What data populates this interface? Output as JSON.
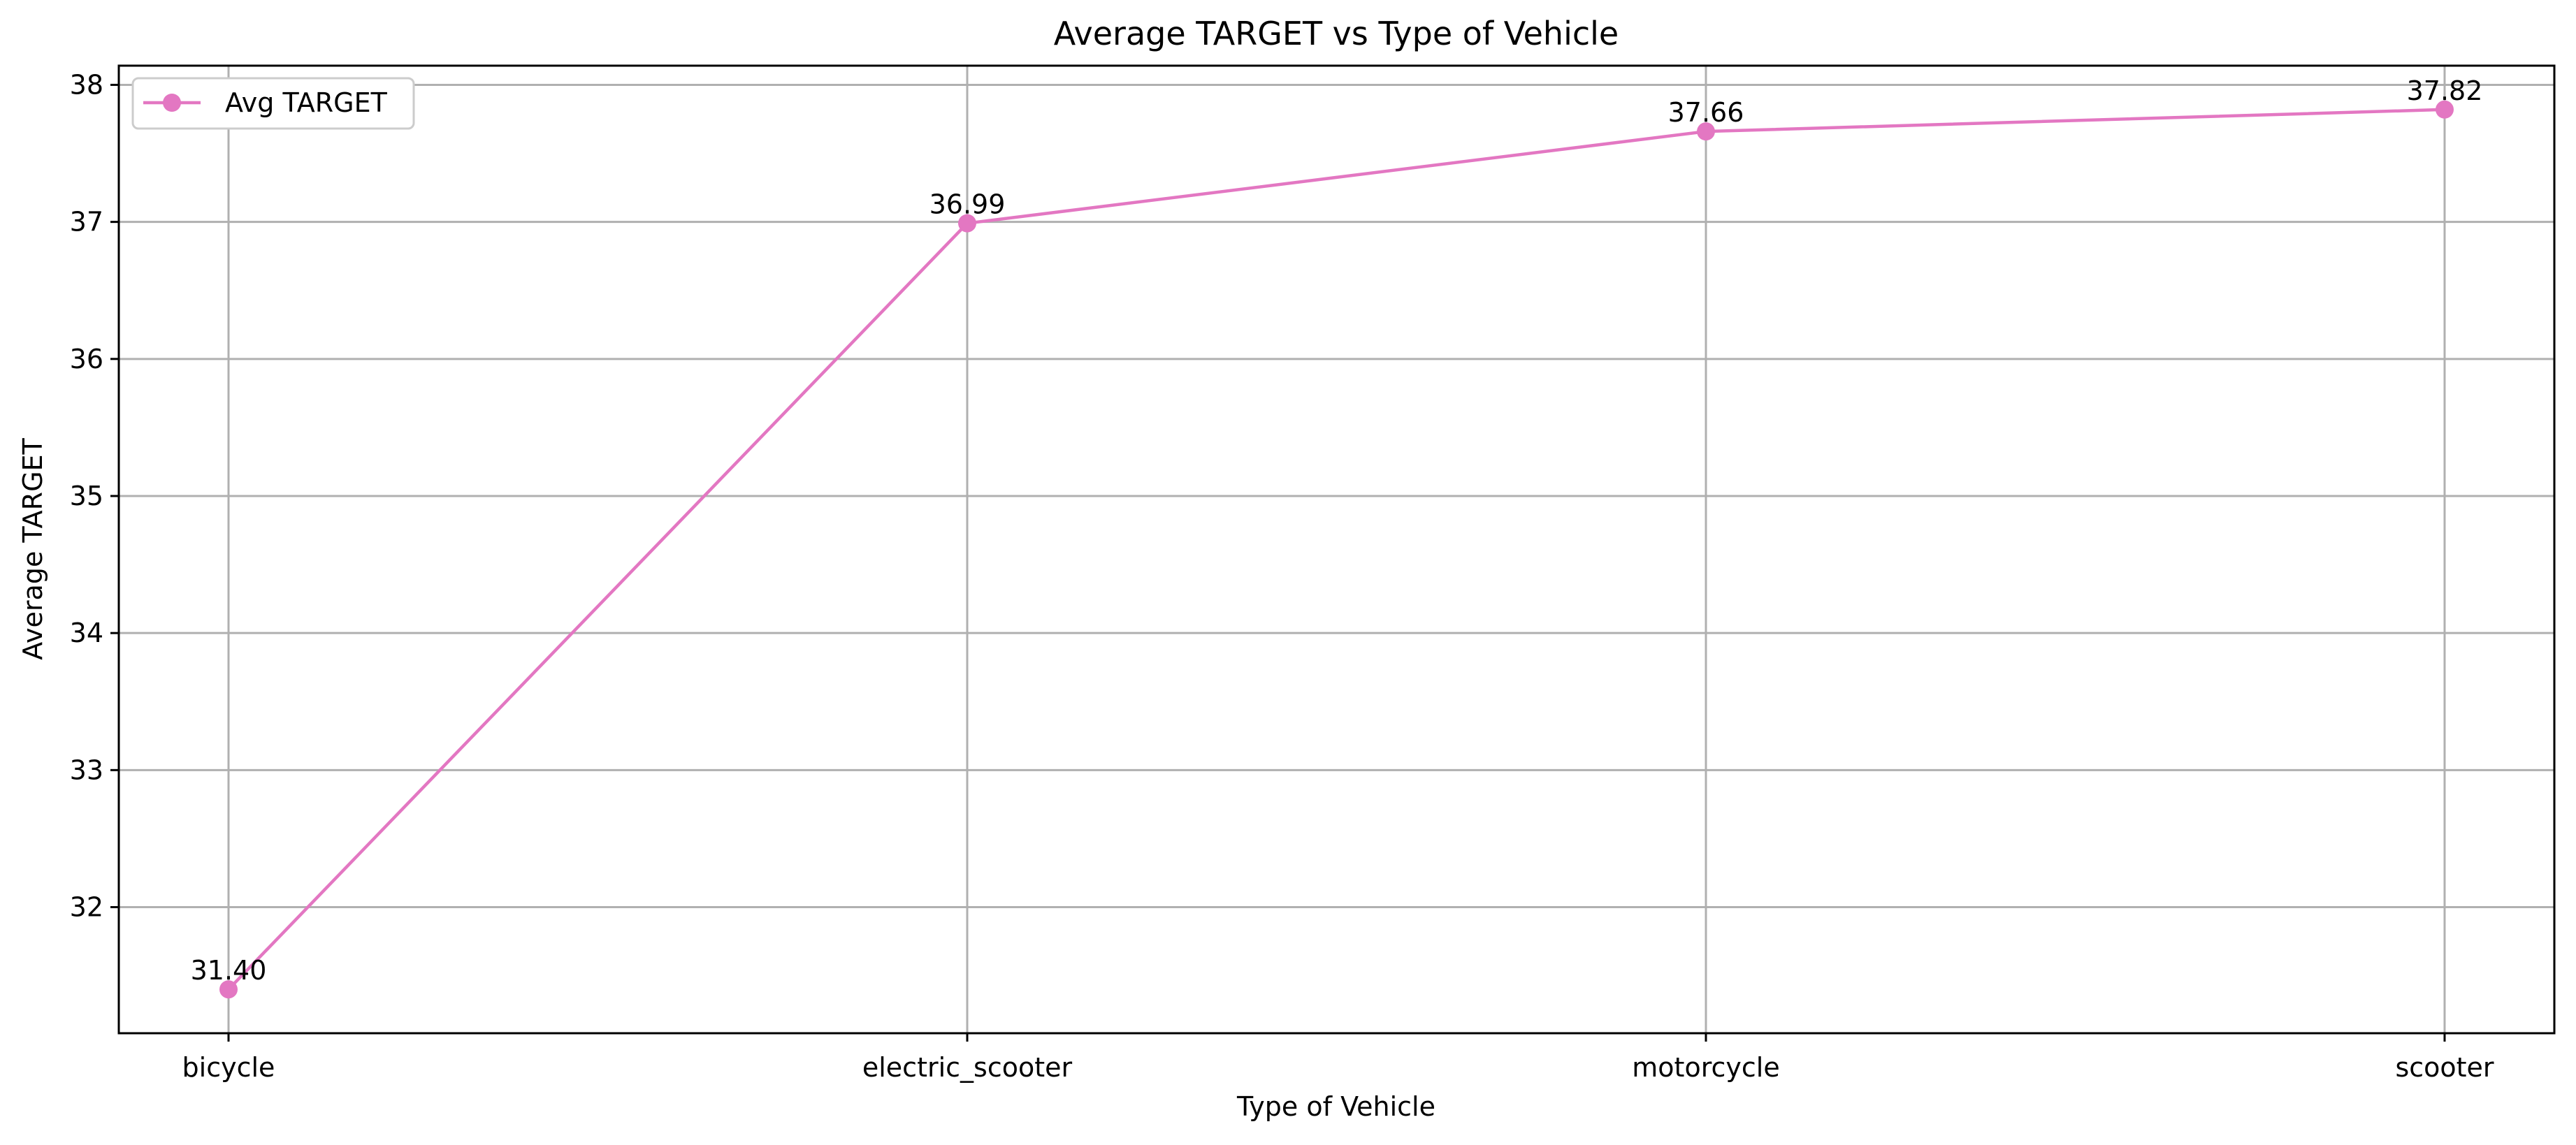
{
  "chart_data": {
    "type": "line",
    "title": "Average TARGET vs Type of Vehicle",
    "xlabel": "Type of Vehicle",
    "ylabel": "Average TARGET",
    "categories": [
      "bicycle",
      "electric_scooter",
      "motorcycle",
      "scooter"
    ],
    "series": [
      {
        "name": "Avg TARGET",
        "values": [
          31.4,
          36.99,
          37.66,
          37.82
        ],
        "data_labels": [
          "31.40",
          "36.99",
          "37.66",
          "37.82"
        ],
        "color": "#e377c2",
        "marker": "circle"
      }
    ],
    "ylim": [
      31.08,
      38.14
    ],
    "yticks": [
      32,
      33,
      34,
      35,
      36,
      37,
      38
    ],
    "grid": true,
    "legend_position": "top-left"
  }
}
